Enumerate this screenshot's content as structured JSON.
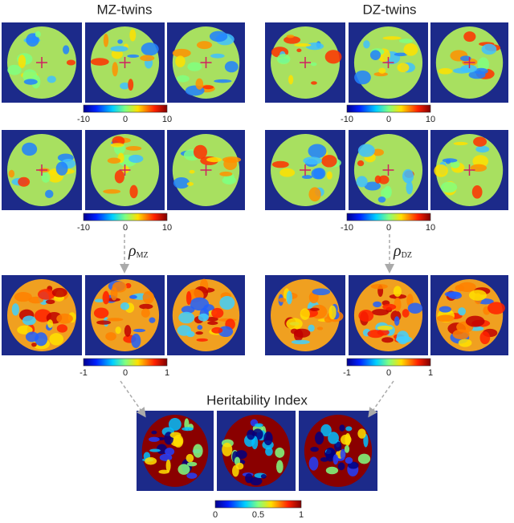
{
  "groups": [
    {
      "title": "MZ-twins",
      "row_colorbar_ticks": [
        [
          "-10",
          "0",
          "10"
        ],
        [
          "-10",
          "0",
          "10"
        ]
      ],
      "correlation_symbol": "ρ",
      "correlation_subscript": "MZ",
      "result_colorbar_ticks": [
        "-1",
        "0",
        "1"
      ]
    },
    {
      "title": "DZ-twins",
      "row_colorbar_ticks": [
        [
          "-10",
          "0",
          "10"
        ],
        [
          "-10",
          "0",
          "10"
        ]
      ],
      "correlation_symbol": "ρ",
      "correlation_subscript": "DZ",
      "result_colorbar_ticks": [
        "-1",
        "0",
        "1"
      ]
    }
  ],
  "heritability": {
    "title": "Heritability Index",
    "colorbar_ticks": [
      "0",
      "0.5",
      "1"
    ]
  }
}
